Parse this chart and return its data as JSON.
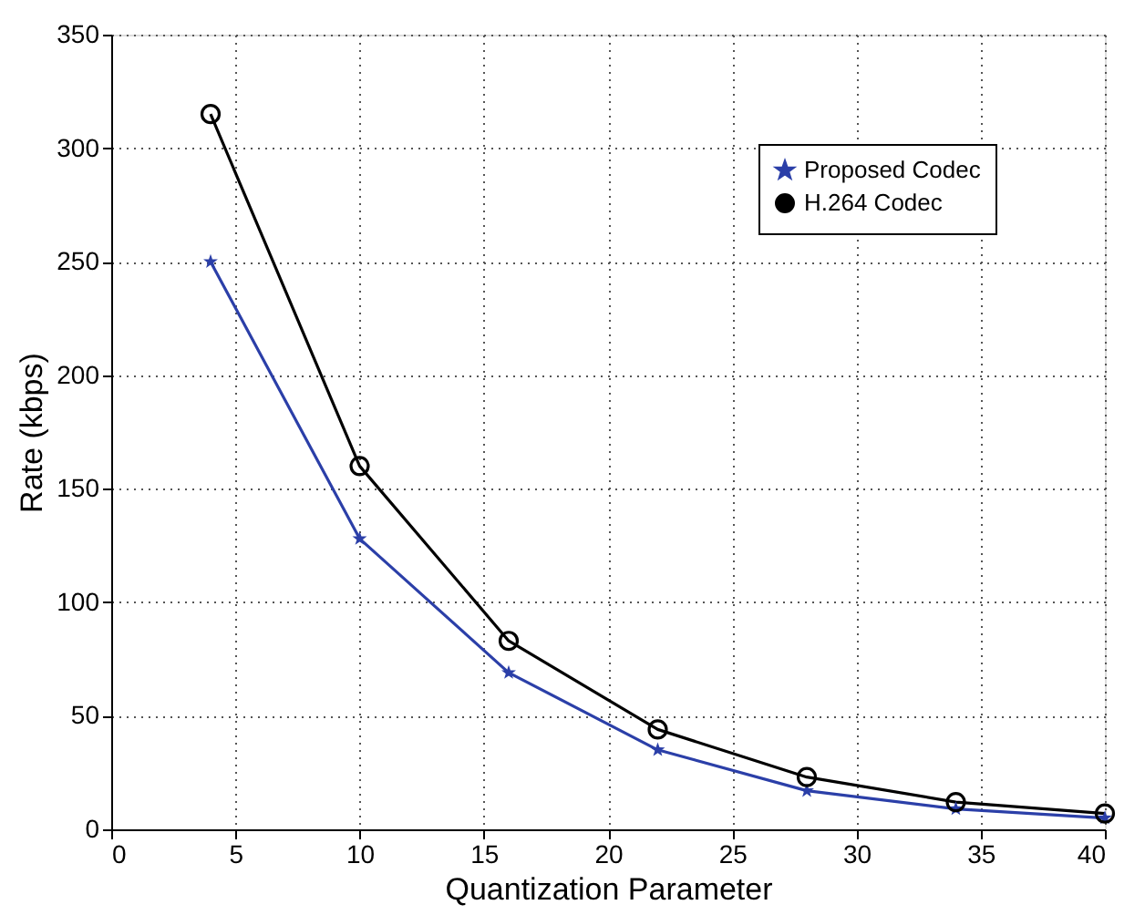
{
  "chart_data": {
    "type": "line",
    "xlabel": "Quantization Parameter",
    "ylabel": "Rate (kbps)",
    "x": [
      4,
      10,
      16,
      22,
      28,
      34,
      40
    ],
    "series": [
      {
        "name": "Proposed Codec",
        "color": "#2b3fa8",
        "marker": "star",
        "values": [
          250,
          128,
          69,
          35,
          17,
          9,
          5
        ]
      },
      {
        "name": "H.264 Codec",
        "color": "#000000",
        "marker": "circle",
        "values": [
          315,
          160,
          83,
          44,
          23,
          12,
          7
        ]
      }
    ],
    "xlim": [
      0,
      40
    ],
    "xticks": [
      0,
      5,
      10,
      15,
      20,
      25,
      30,
      35,
      40
    ],
    "ylim": [
      0,
      350
    ],
    "yticks": [
      0,
      50,
      100,
      150,
      200,
      250,
      300,
      350
    ],
    "grid": true,
    "legend": "top right",
    "line_style": "solid"
  }
}
